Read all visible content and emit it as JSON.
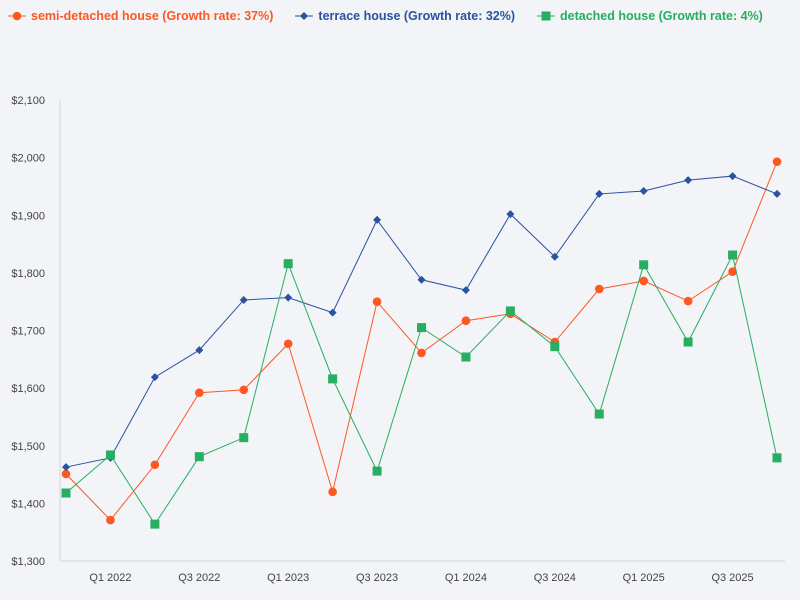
{
  "chart_data": {
    "type": "line",
    "title": "",
    "xlabel": "",
    "ylabel": "",
    "x": [
      "Q4 2021",
      "Q1 2022",
      "Q2 2022",
      "Q3 2022",
      "Q4 2022",
      "Q1 2023",
      "Q2 2023",
      "Q3 2023",
      "Q4 2023",
      "Q1 2024",
      "Q2 2024",
      "Q3 2024",
      "Q4 2024",
      "Q1 2025",
      "Q2 2025",
      "Q3 2025",
      "Q4 2025"
    ],
    "x_tick_labels": [
      "Q1 2022",
      "Q3 2022",
      "Q1 2023",
      "Q3 2023",
      "Q1 2024",
      "Q3 2024",
      "Q1 2025",
      "Q3 2025"
    ],
    "y_tick_labels": [
      "$1,300",
      "$1,400",
      "$1,500",
      "$1,600",
      "$1,700",
      "$1,800",
      "$1,900",
      "$2,000",
      "$2,100"
    ],
    "ylim": [
      1300,
      2100
    ],
    "grid": false,
    "legend_placement": "top-left",
    "series": [
      {
        "name": "semi-detached house (Growth rate: 37%)",
        "color": "#ff5722",
        "marker": "circle",
        "values": [
          1451,
          1371,
          1467,
          1592,
          1597,
          1677,
          1420,
          1750,
          1661,
          1717,
          1729,
          1680,
          1772,
          1786,
          1751,
          1802,
          1993
        ]
      },
      {
        "name": "terrace house (Growth rate: 32%)",
        "color": "#2a52a0",
        "marker": "diamond",
        "values": [
          1463,
          1479,
          1619,
          1666,
          1753,
          1757,
          1731,
          1892,
          1788,
          1770,
          1902,
          1828,
          1937,
          1942,
          1961,
          1968,
          1937
        ]
      },
      {
        "name": "detached house (Growth rate: 4%)",
        "color": "#27ae60",
        "marker": "square",
        "values": [
          1418,
          1484,
          1364,
          1481,
          1514,
          1816,
          1616,
          1456,
          1705,
          1654,
          1734,
          1672,
          1555,
          1814,
          1680,
          1831,
          1479
        ]
      }
    ]
  }
}
